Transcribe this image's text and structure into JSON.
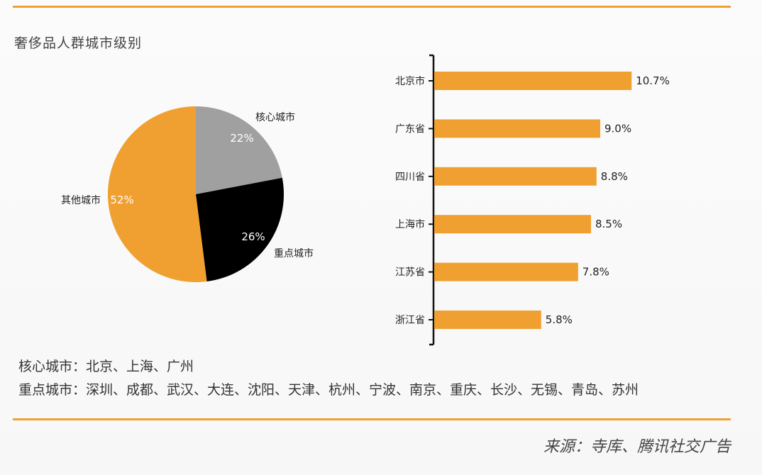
{
  "title": "奢侈品人群城市级别",
  "colors": {
    "accent": "#f0a030",
    "core": "#a0a0a0",
    "key": "#000000",
    "other": "#f0a030"
  },
  "chart_data": [
    {
      "type": "pie",
      "slices": [
        {
          "label": "核心城市",
          "value": 22,
          "value_label": "22%",
          "color": "#a0a0a0"
        },
        {
          "label": "重点城市",
          "value": 26,
          "value_label": "26%",
          "color": "#000000"
        },
        {
          "label": "其他城市",
          "value": 52,
          "value_label": "52%",
          "color": "#f0a030"
        }
      ]
    },
    {
      "type": "bar",
      "orientation": "horizontal",
      "categories": [
        "北京市",
        "广东省",
        "四川省",
        "上海市",
        "江苏省",
        "浙江省"
      ],
      "values": [
        10.7,
        9.0,
        8.8,
        8.5,
        7.8,
        5.8
      ],
      "value_labels": [
        "10.7%",
        "9.0%",
        "8.8%",
        "8.5%",
        "7.8%",
        "5.8%"
      ],
      "color": "#f0a030"
    }
  ],
  "notes": {
    "core": "核心城市：北京、上海、广州",
    "key": "重点城市：深圳、成都、武汉、大连、沈阳、天津、杭州、宁波、南京、重庆、长沙、无锡、青岛、苏州"
  },
  "source": "来源：寺库、腾讯社交广告"
}
